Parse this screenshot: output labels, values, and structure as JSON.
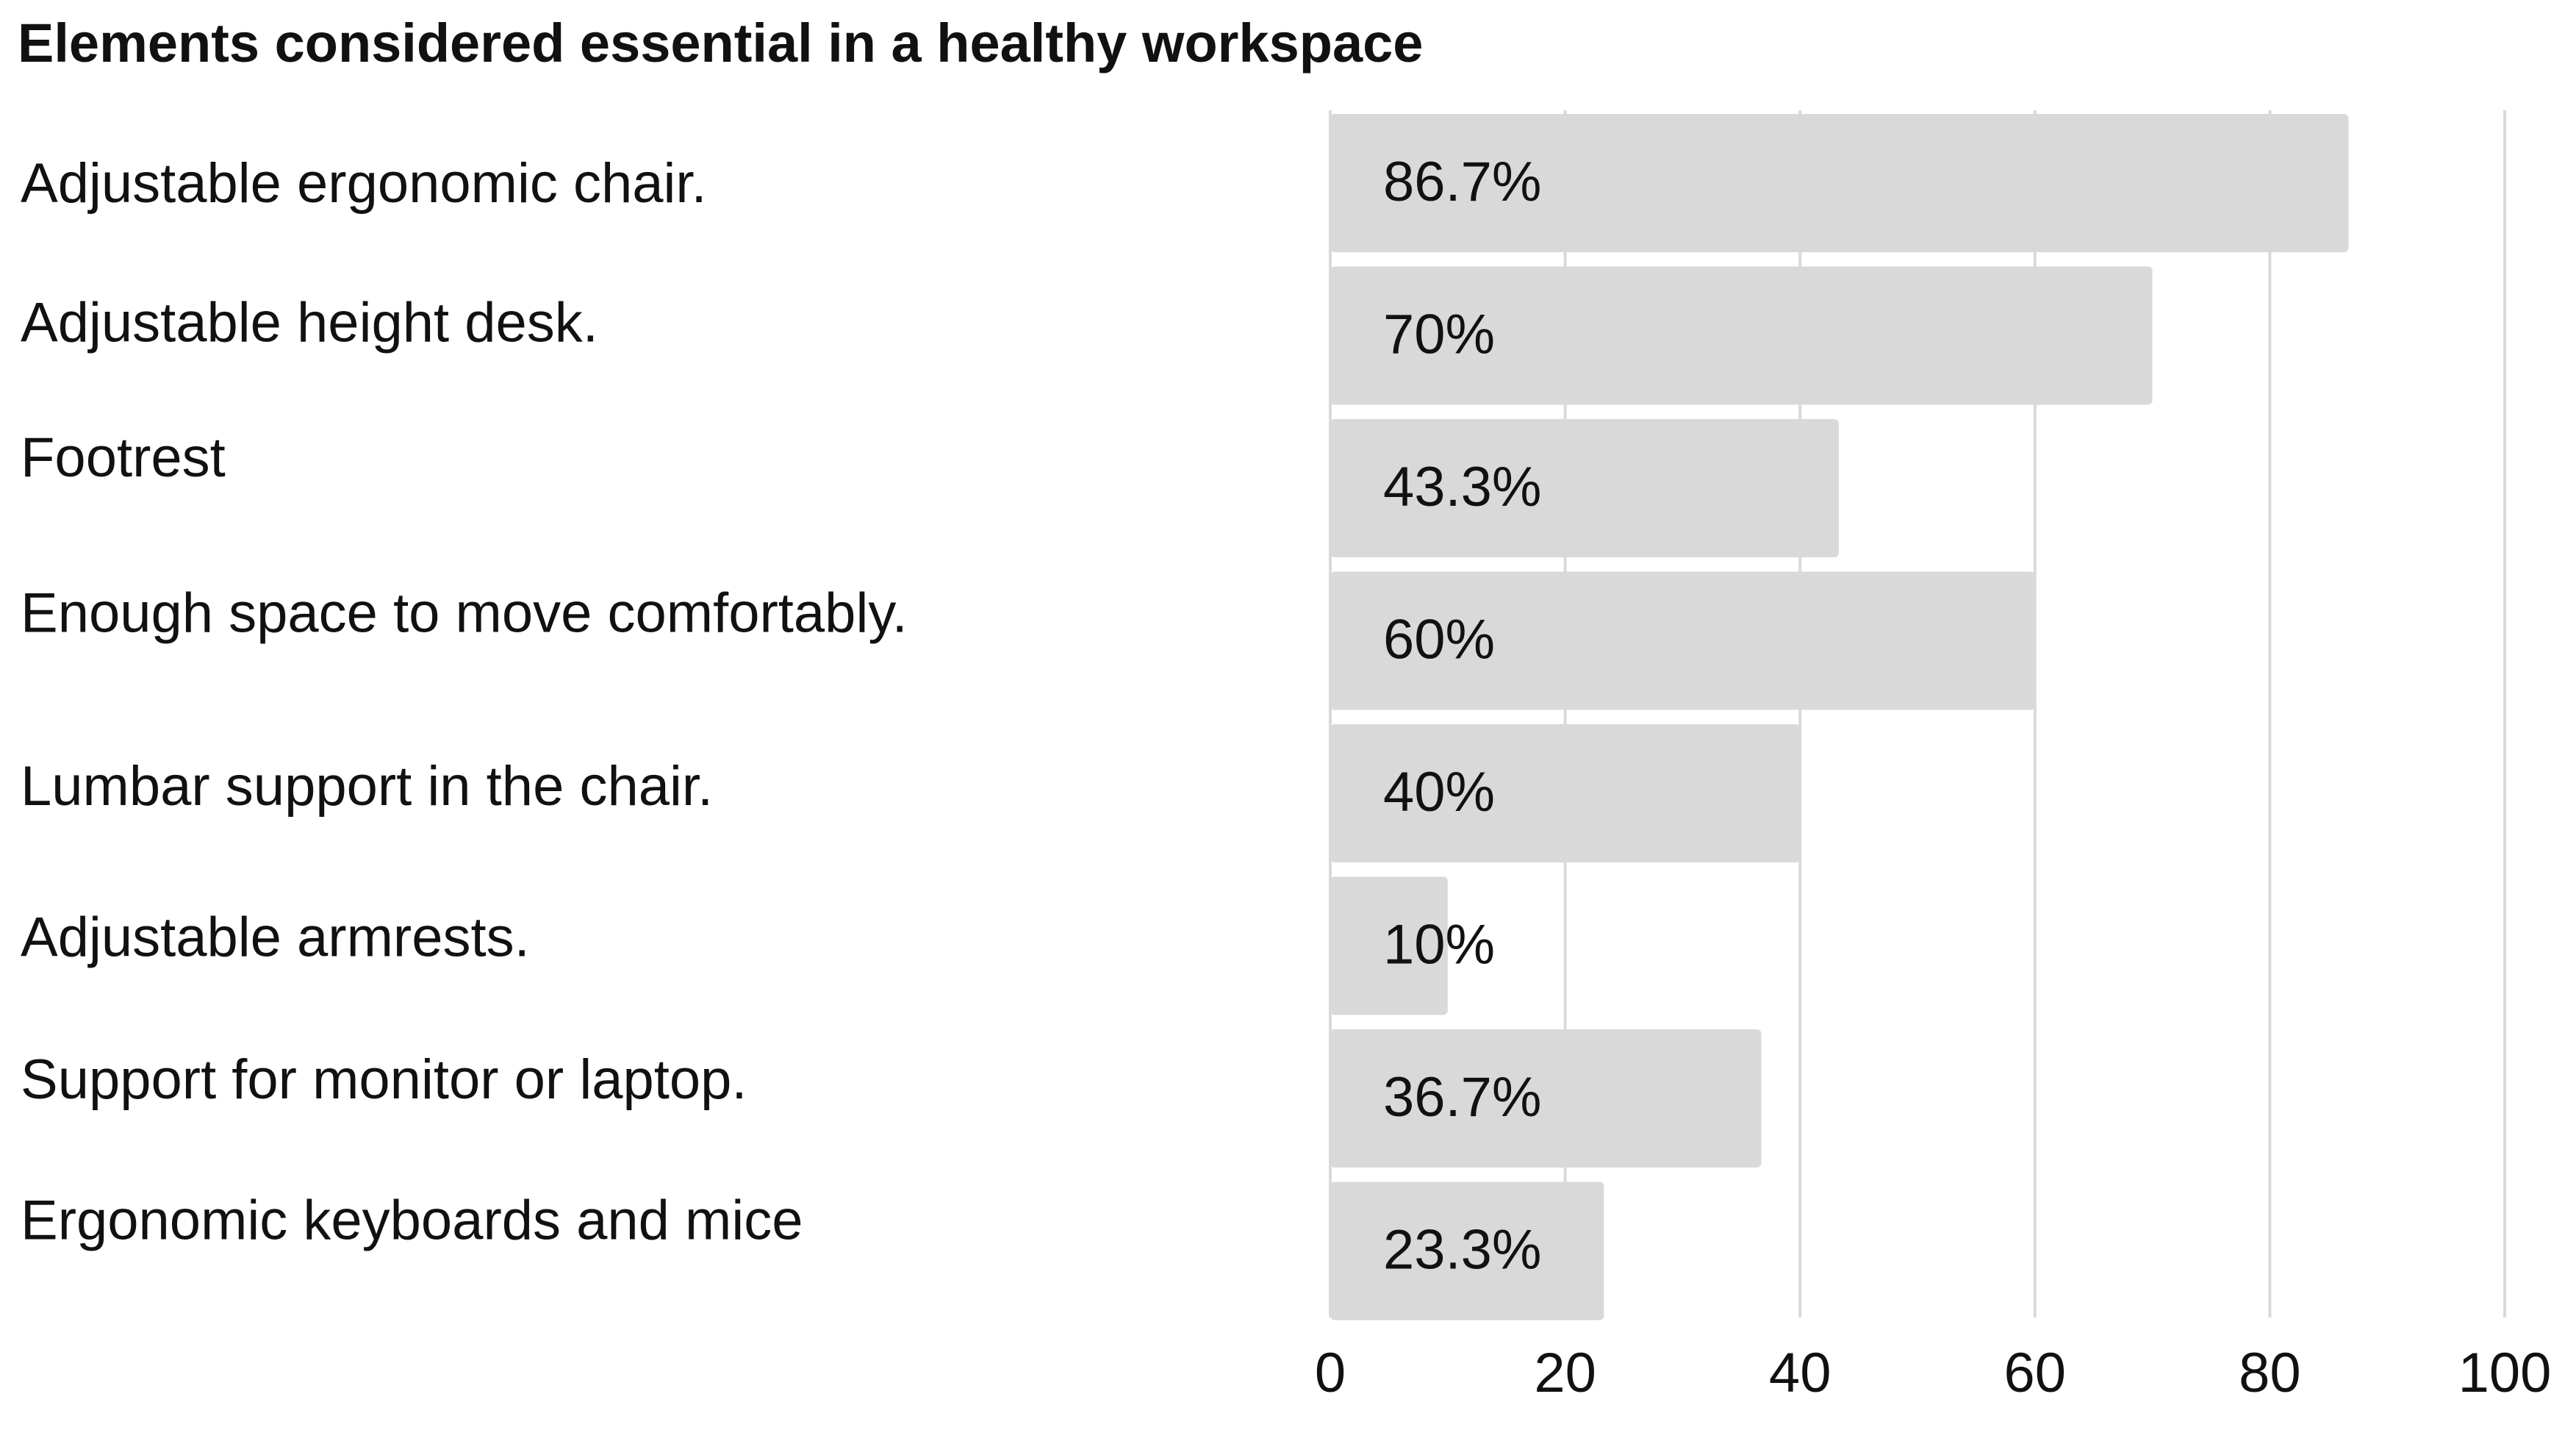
{
  "chart_data": {
    "type": "bar",
    "orientation": "horizontal",
    "title": "Elements considered essential in a healthy workspace",
    "categories": [
      "Adjustable ergonomic chair.",
      "Adjustable height desk.",
      "Footrest",
      "Enough space to move comfortably.",
      "Lumbar support in the chair.",
      "Adjustable armrests.",
      "Support for monitor or laptop.",
      "Ergonomic keyboards and mice"
    ],
    "values": [
      86.7,
      70,
      43.3,
      60,
      40,
      10,
      36.7,
      23.3
    ],
    "data_labels": [
      "86.7%",
      "70%",
      "43.3%",
      "60%",
      "40%",
      "10%",
      "36.7%",
      "23.3%"
    ],
    "xlim": [
      0,
      100
    ],
    "xticks": [
      0,
      20,
      40,
      60,
      80,
      100
    ],
    "xtick_labels": [
      "0",
      "20",
      "40",
      "60",
      "80",
      "100"
    ],
    "xlabel": "",
    "ylabel": "",
    "grid": true,
    "legend": "none",
    "bar_color": "#d9d9d9",
    "grid_color": "#d9d9d9",
    "text_color": "#111111"
  }
}
